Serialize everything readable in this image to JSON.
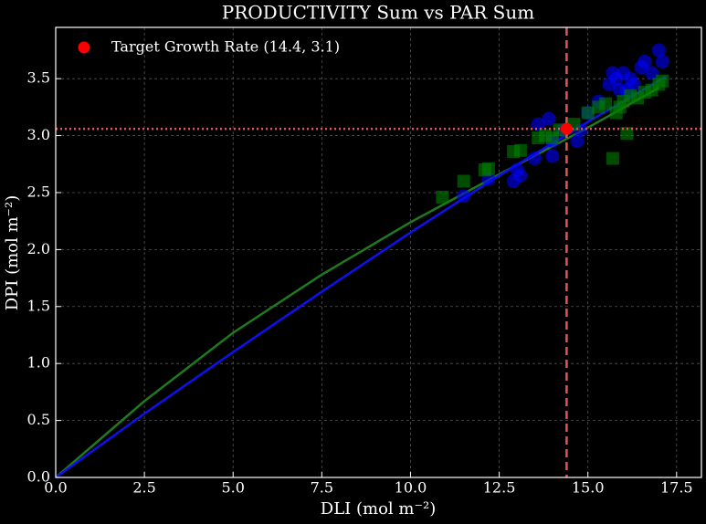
{
  "chart_data": {
    "type": "scatter",
    "title": "PRODUCTIVITY Sum vs PAR Sum",
    "xlabel": "DLI (mol m⁻²)",
    "ylabel": "DPI (mol m⁻²)",
    "xlim": [
      0,
      18.2
    ],
    "ylim": [
      0,
      3.95
    ],
    "xticks": [
      {
        "value": 0,
        "label": "0.0"
      },
      2.5,
      {
        "value": 5,
        "label": "5.0"
      },
      7.5,
      {
        "value": 10,
        "label": "10.0"
      },
      12.5,
      {
        "value": 15,
        "label": "15.0"
      },
      17.5
    ],
    "yticks": [
      {
        "value": 0,
        "label": "0.0"
      },
      0.5,
      {
        "value": 1,
        "label": "1.0"
      },
      1.5,
      {
        "value": 2,
        "label": "2.0"
      },
      2.5,
      {
        "value": 3,
        "label": "3.0"
      },
      3.5
    ],
    "grid": true,
    "legend": "upper left",
    "series": [
      {
        "type": "line",
        "color": "#1f7a1f",
        "x": [
          0,
          2.5,
          5,
          7.5,
          10,
          12.5,
          15,
          17
        ],
        "values": [
          0,
          0.67,
          1.27,
          1.78,
          2.24,
          2.66,
          3.07,
          3.42
        ]
      },
      {
        "type": "line",
        "color": "#1010ee",
        "x": [
          0,
          2.5,
          5,
          7.5,
          10,
          12.5,
          15,
          17.2
        ],
        "values": [
          0,
          0.56,
          1.1,
          1.63,
          2.15,
          2.65,
          3.12,
          3.52
        ]
      },
      {
        "type": "scatter",
        "marker": "circle",
        "color": "#0000ff",
        "x": [
          11.5,
          12.2,
          12.9,
          13.0,
          13.1,
          13.5,
          13.6,
          13.9,
          14.0,
          14.0,
          14.3,
          14.7,
          14.8,
          15.0,
          15.3,
          15.6,
          15.7,
          15.8,
          15.9,
          16.0,
          16.2,
          16.3,
          16.5,
          16.6,
          16.8,
          17.0,
          17.1,
          16.1
        ],
        "values": [
          2.47,
          2.62,
          2.6,
          2.7,
          2.65,
          2.8,
          3.1,
          3.15,
          2.82,
          2.95,
          3.05,
          2.95,
          3.05,
          3.2,
          3.3,
          3.45,
          3.55,
          3.5,
          3.4,
          3.55,
          3.5,
          3.45,
          3.6,
          3.65,
          3.55,
          3.75,
          3.65,
          3.4
        ]
      },
      {
        "type": "scatter",
        "marker": "square",
        "color": "#008000",
        "x": [
          10.9,
          11.5,
          12.1,
          12.2,
          12.9,
          13.1,
          13.6,
          13.8,
          14.0,
          14.2,
          14.6,
          15.0,
          15.3,
          15.5,
          15.7,
          15.8,
          15.9,
          16.0,
          16.1,
          16.2,
          16.4,
          16.6,
          16.8,
          17.0,
          17.1
        ],
        "values": [
          2.46,
          2.6,
          2.7,
          2.71,
          2.86,
          2.87,
          2.98,
          3.0,
          2.98,
          3.05,
          3.1,
          3.2,
          3.25,
          3.28,
          2.8,
          3.2,
          3.25,
          3.3,
          3.02,
          3.35,
          3.33,
          3.38,
          3.4,
          3.45,
          3.48
        ]
      },
      {
        "type": "target",
        "name": "Target Growth Rate (14.4, 3.1)",
        "color": "#ff0000",
        "refcolor": "#e05555",
        "x": [
          14.4
        ],
        "values": [
          3.06
        ]
      }
    ]
  }
}
